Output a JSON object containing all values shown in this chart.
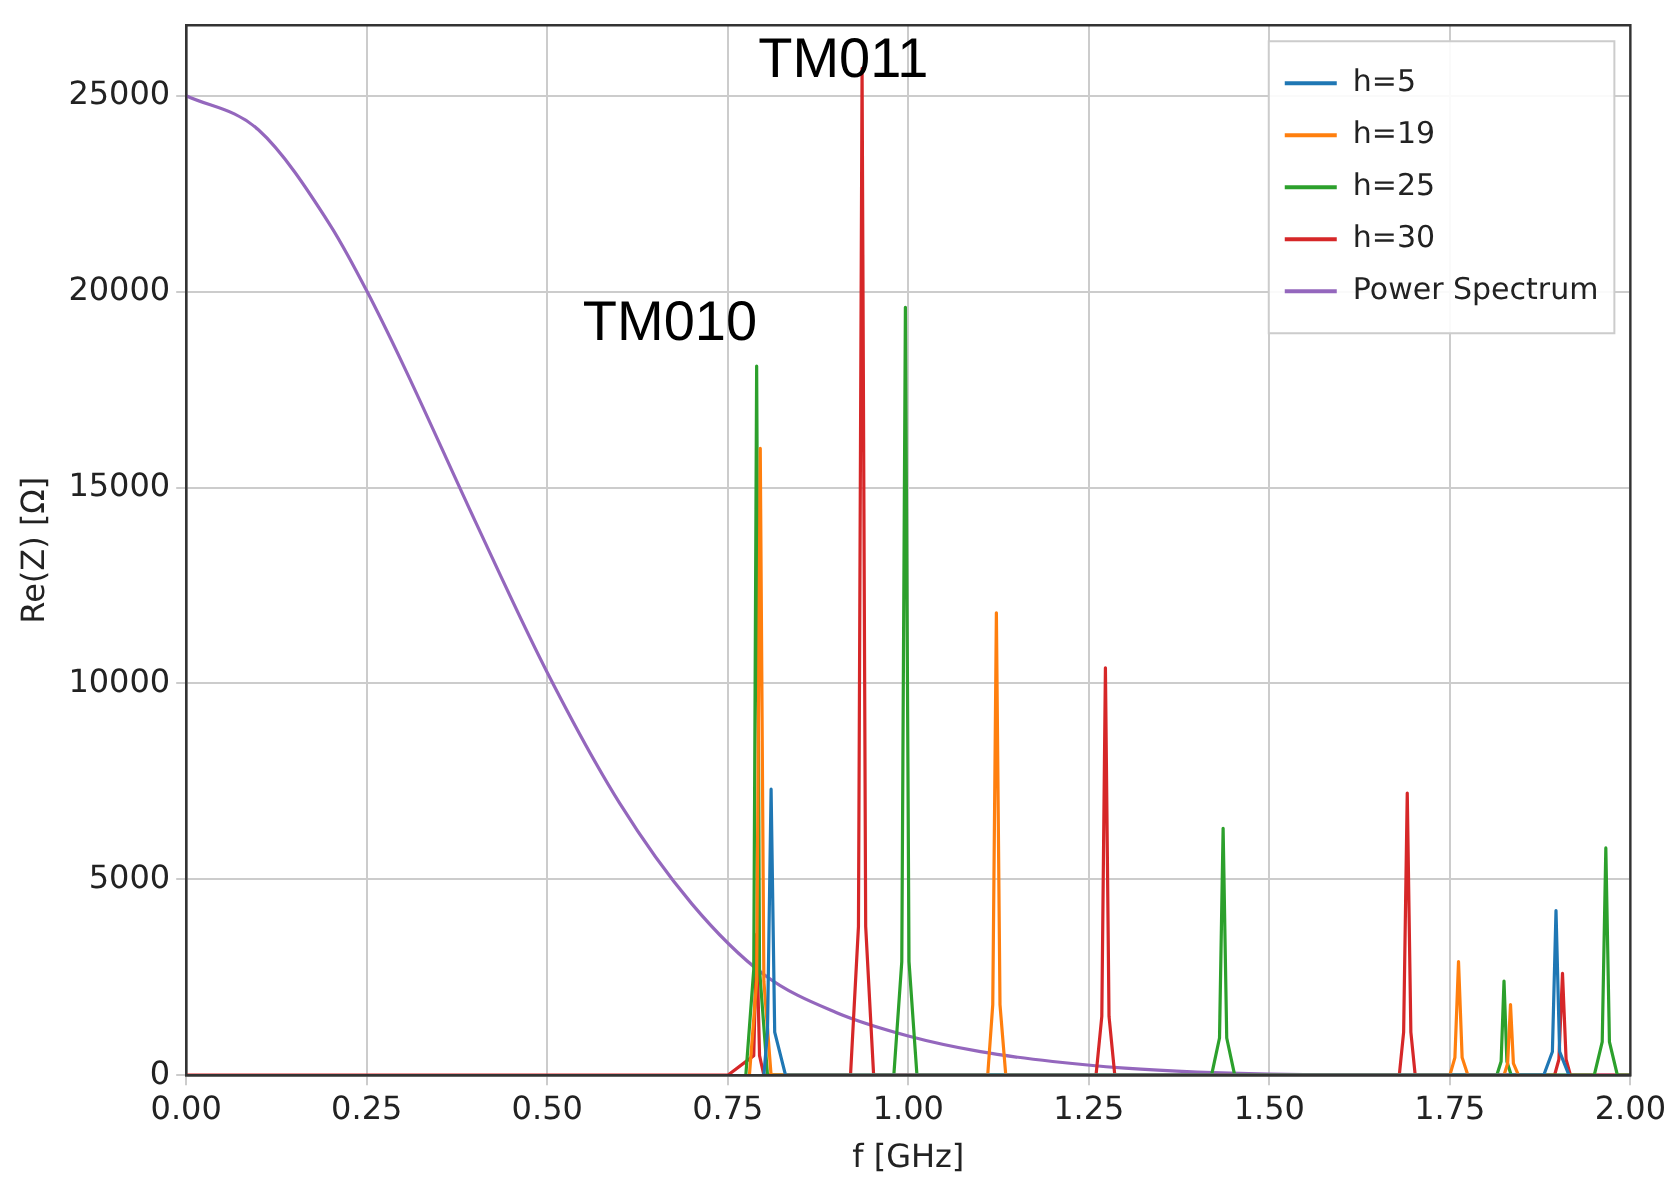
{
  "chart_data": {
    "type": "line",
    "xlabel": "f [GHz]",
    "ylabel": "Re(Z) [Ω]",
    "xlim": [
      0,
      2
    ],
    "xticks": [
      {
        "value": 0,
        "label": "0.00"
      },
      {
        "value": 0.25,
        "label": "0.25"
      },
      {
        "value": 0.5,
        "label": "0.50"
      },
      {
        "value": 0.75,
        "label": "0.75"
      },
      {
        "value": 1,
        "label": "1.00"
      },
      {
        "value": 1.25,
        "label": "1.25"
      },
      {
        "value": 1.5,
        "label": "1.50"
      },
      {
        "value": 1.75,
        "label": "1.75"
      },
      {
        "value": 2,
        "label": "2.00"
      }
    ],
    "ylim": [
      0,
      26800
    ],
    "yticks": [
      0,
      5000,
      10000,
      15000,
      20000,
      25000
    ],
    "grid": true,
    "legend": "top right",
    "marker": "none",
    "line_style": "solid",
    "series": [
      {
        "name": "h=5",
        "color": "#1f77b4",
        "x": [
          0.8,
          0.805,
          0.81,
          0.815,
          0.83,
          1.88,
          1.892,
          1.897,
          1.902,
          1.915
        ],
        "values": [
          0,
          1100,
          7300,
          1100,
          0,
          0,
          600,
          4200,
          600,
          0
        ]
      },
      {
        "name": "h=19",
        "color": "#ff7f0e",
        "x": [
          0.78,
          0.79,
          0.795,
          0.8,
          0.81,
          1.11,
          1.117,
          1.122,
          1.127,
          1.135,
          1.75,
          1.757,
          1.762,
          1.767,
          1.775,
          1.825,
          1.83,
          1.834,
          1.838,
          1.845
        ],
        "values": [
          0,
          2400,
          16000,
          2400,
          0,
          0,
          1800,
          11800,
          1800,
          0,
          0,
          450,
          2900,
          450,
          0,
          0,
          300,
          1800,
          300,
          0
        ]
      },
      {
        "name": "h=25",
        "color": "#2ca02c",
        "x": [
          0.775,
          0.786,
          0.79,
          0.794,
          0.805,
          0.98,
          0.991,
          0.996,
          1.001,
          1.012,
          1.42,
          1.431,
          1.436,
          1.441,
          1.452,
          1.815,
          1.821,
          1.825,
          1.829,
          1.835,
          1.95,
          1.961,
          1.966,
          1.971,
          1.982,
          2
        ],
        "values": [
          0,
          2700,
          18100,
          2700,
          0,
          0,
          2900,
          19600,
          2900,
          0,
          0,
          950,
          6300,
          950,
          0,
          0,
          350,
          2400,
          350,
          0,
          0,
          850,
          5800,
          850,
          0,
          0
        ]
      },
      {
        "name": "h=30",
        "color": "#d62728",
        "x": [
          0,
          0.75,
          0.786,
          0.79,
          0.794,
          0.8,
          0.92,
          0.931,
          0.936,
          0.941,
          0.952,
          1.26,
          1.268,
          1.273,
          1.278,
          1.286,
          1.68,
          1.686,
          1.691,
          1.696,
          1.702,
          1.895,
          1.901,
          1.906,
          1.911,
          1.917,
          2
        ],
        "values": [
          0,
          0,
          500,
          3600,
          500,
          0,
          0,
          3800,
          25700,
          3800,
          0,
          0,
          1500,
          10400,
          1500,
          0,
          0,
          1100,
          7200,
          1100,
          0,
          0,
          400,
          2600,
          400,
          0,
          0
        ]
      },
      {
        "name": "Power Spectrum",
        "color": "#9467bd",
        "x": [
          0,
          0.1,
          0.2,
          0.25,
          0.3,
          0.4,
          0.5,
          0.6,
          0.7,
          0.8,
          0.9,
          1,
          1.1,
          1.2,
          1.3,
          1.4,
          1.5,
          1.7,
          2
        ],
        "values": [
          25000,
          24130,
          21680,
          20020,
          18150,
          14150,
          10280,
          6950,
          4380,
          2570,
          1600,
          1000,
          600,
          350,
          180,
          80,
          30,
          0,
          0
        ]
      }
    ],
    "annotations": [
      "TM010",
      "TM011"
    ]
  }
}
